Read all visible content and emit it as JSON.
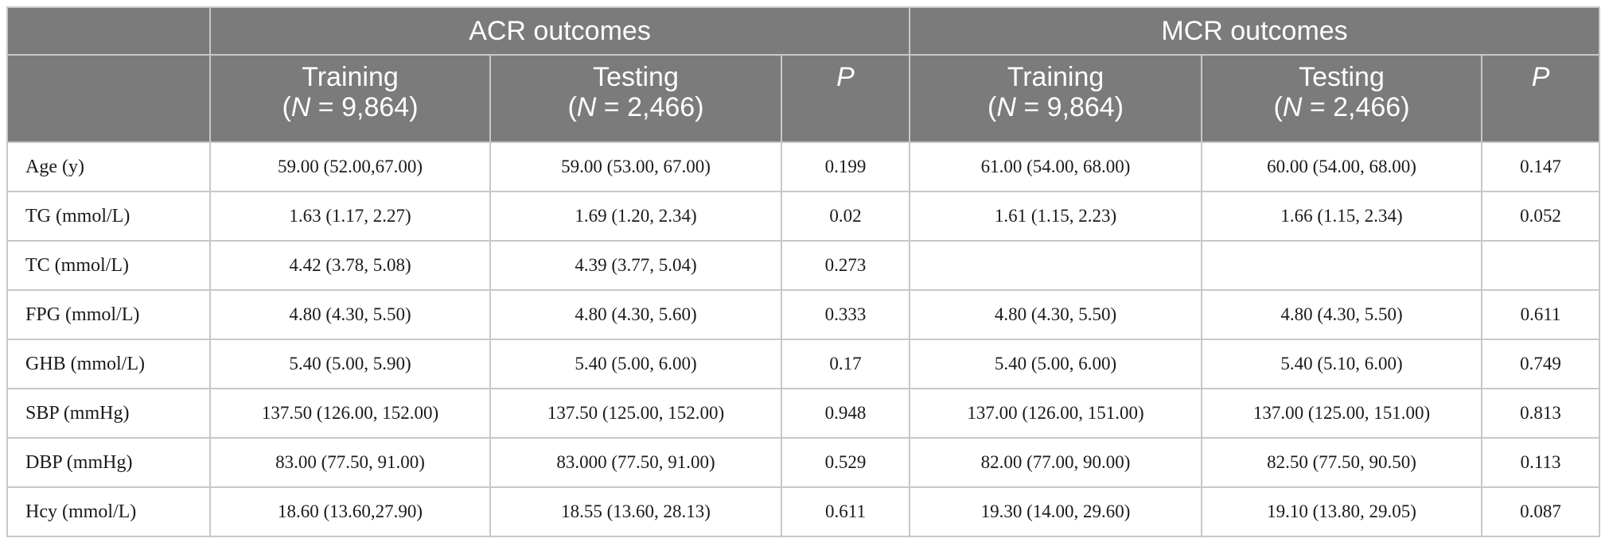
{
  "table": {
    "groups": [
      {
        "label": "ACR outcomes"
      },
      {
        "label": "MCR outcomes"
      }
    ],
    "subheaders": {
      "acr": {
        "training_line1": "Training",
        "training_n_label": "N",
        "training_n_value": " = 9,864",
        "testing_line1": "Testing",
        "testing_n_label": "N",
        "testing_n_value": " = 2,466",
        "p": "P"
      },
      "mcr": {
        "training_line1": "Training",
        "training_n_label": "N",
        "training_n_value": " = 9,864",
        "testing_line1": "Testing",
        "testing_n_label": "N",
        "testing_n_value": " = 2,466",
        "p": "P"
      }
    },
    "rows": [
      {
        "label": "Age (y)",
        "acr_training": "59.00 (52.00,67.00)",
        "acr_testing": "59.00 (53.00, 67.00)",
        "acr_p": "0.199",
        "mcr_training": "61.00 (54.00, 68.00)",
        "mcr_testing": "60.00 (54.00, 68.00)",
        "mcr_p": "0.147"
      },
      {
        "label": "TG (mmol/L)",
        "acr_training": "1.63 (1.17, 2.27)",
        "acr_testing": "1.69 (1.20, 2.34)",
        "acr_p": "0.02",
        "mcr_training": "1.61 (1.15, 2.23)",
        "mcr_testing": "1.66 (1.15, 2.34)",
        "mcr_p": "0.052"
      },
      {
        "label": "TC (mmol/L)",
        "acr_training": "4.42 (3.78, 5.08)",
        "acr_testing": "4.39 (3.77, 5.04)",
        "acr_p": "0.273",
        "mcr_training": "",
        "mcr_testing": "",
        "mcr_p": ""
      },
      {
        "label": "FPG (mmol/L)",
        "acr_training": "4.80 (4.30, 5.50)",
        "acr_testing": "4.80 (4.30, 5.60)",
        "acr_p": "0.333",
        "mcr_training": "4.80 (4.30, 5.50)",
        "mcr_testing": "4.80 (4.30, 5.50)",
        "mcr_p": "0.611"
      },
      {
        "label": "GHB (mmol/L)",
        "acr_training": "5.40 (5.00, 5.90)",
        "acr_testing": "5.40 (5.00, 6.00)",
        "acr_p": "0.17",
        "mcr_training": "5.40 (5.00, 6.00)",
        "mcr_testing": "5.40 (5.10, 6.00)",
        "mcr_p": "0.749"
      },
      {
        "label": "SBP (mmHg)",
        "acr_training": "137.50 (126.00, 152.00)",
        "acr_testing": "137.50 (125.00, 152.00)",
        "acr_p": "0.948",
        "mcr_training": "137.00 (126.00, 151.00)",
        "mcr_testing": "137.00 (125.00, 151.00)",
        "mcr_p": "0.813"
      },
      {
        "label": "DBP (mmHg)",
        "acr_training": "83.00 (77.50, 91.00)",
        "acr_testing": "83.000 (77.50, 91.00)",
        "acr_p": "0.529",
        "mcr_training": "82.00 (77.00, 90.00)",
        "mcr_testing": "82.50 (77.50, 90.50)",
        "mcr_p": "0.113"
      },
      {
        "label": "Hcy (mmol/L)",
        "acr_training": "18.60 (13.60,27.90)",
        "acr_testing": "18.55 (13.60, 28.13)",
        "acr_p": "0.611",
        "mcr_training": "19.30 (14.00, 29.60)",
        "mcr_testing": "19.10 (13.80, 29.05)",
        "mcr_p": "0.087"
      }
    ]
  },
  "colors": {
    "header_bg": "#7b7b7b",
    "header_text": "#ffffff",
    "grid": "#c8c8c8",
    "body_text": "#1a1a1a"
  }
}
